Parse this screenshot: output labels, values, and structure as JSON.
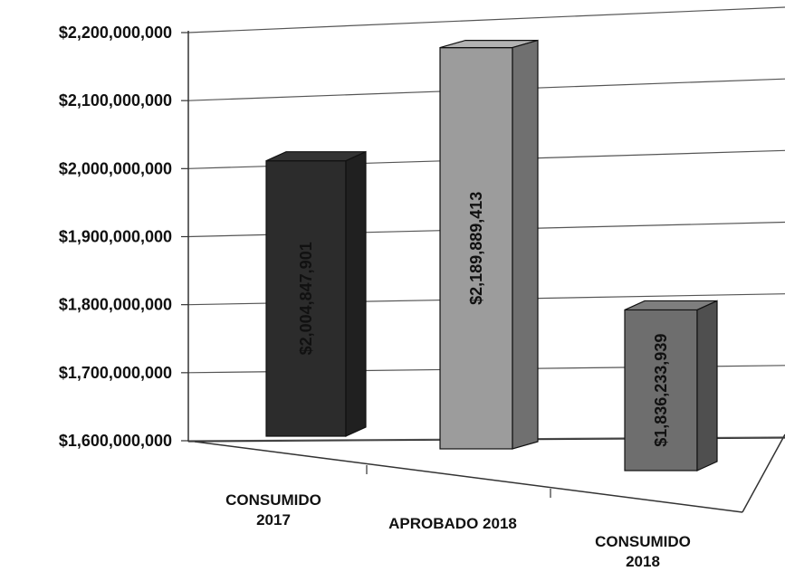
{
  "chart_data": {
    "type": "bar",
    "title": "",
    "xlabel": "",
    "ylabel": "",
    "categories": [
      [
        "CONSUMIDO",
        "2017"
      ],
      [
        "APROBADO 2018"
      ],
      [
        "CONSUMIDO",
        "2018"
      ]
    ],
    "values": [
      2004847901,
      2189889413,
      1836233939
    ],
    "data_labels": [
      "$2,004,847,901",
      "$2,189,889,413",
      "$1,836,233,939"
    ],
    "bar_colors": [
      "#2c2c2c",
      "#9c9c9c",
      "#6e6e6e"
    ],
    "ylim": [
      1600000000,
      2200000000
    ],
    "yticks": [
      1600000000,
      1700000000,
      1800000000,
      1900000000,
      2000000000,
      2100000000,
      2200000000
    ],
    "ytick_labels": [
      "$1,600,000,000",
      "$1,700,000,000",
      "$1,800,000,000",
      "$1,900,000,000",
      "$2,000,000,000",
      "$2,100,000,000",
      "$2,200,000,000"
    ],
    "grid": true,
    "style": "3d-column",
    "legend": "none"
  }
}
